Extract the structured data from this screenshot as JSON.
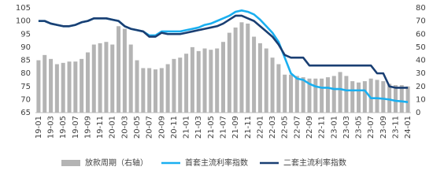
{
  "chart_data": {
    "type": "combo",
    "categories": [
      "19-01",
      null,
      "19-03",
      null,
      "19-05",
      null,
      "19-07",
      null,
      "19-09",
      null,
      "19-11",
      null,
      "20-01",
      null,
      "20-03",
      null,
      "20-05",
      null,
      "20-07",
      null,
      "20-09",
      null,
      "20-11",
      null,
      "21-01",
      null,
      "21-03",
      null,
      "21-05",
      null,
      "21-07",
      null,
      "21-09",
      null,
      "21-11",
      null,
      "22-01",
      null,
      "22-03",
      null,
      "22-05",
      null,
      "22-07",
      null,
      "22-09",
      null,
      "22-11",
      null,
      "23-01",
      null,
      "23-03",
      null,
      "23-05",
      null,
      "23-07",
      null,
      "23-09",
      null,
      "23-11",
      null,
      "24-01"
    ],
    "series": [
      {
        "name": "放款周期（右轴）",
        "type": "bar",
        "axis": "y2",
        "color": "#b4b4b4",
        "values": [
          40,
          44,
          41,
          37,
          38,
          39,
          39,
          41,
          46,
          52,
          53,
          54,
          52,
          66,
          64,
          52,
          40,
          34,
          34,
          33,
          34,
          37,
          41,
          42,
          45,
          50,
          47,
          49,
          48,
          49,
          54,
          61,
          65,
          69,
          68,
          58,
          53,
          49,
          42,
          37,
          29,
          29,
          28,
          27,
          26,
          26,
          26,
          27,
          28,
          31,
          28,
          24,
          23,
          24,
          26,
          25,
          24,
          22,
          21,
          21,
          20
        ]
      },
      {
        "name": "首套主流利率指数",
        "type": "line",
        "color": "#1aaff0",
        "values": [
          100,
          100,
          99,
          98.5,
          98,
          98,
          98.5,
          99.5,
          100,
          101,
          101,
          101,
          100.5,
          100,
          98,
          97,
          96.5,
          96,
          94.5,
          94.5,
          96,
          96,
          96,
          96,
          96.5,
          97,
          97.5,
          98.5,
          99,
          100,
          101,
          102,
          103.5,
          104,
          103.5,
          102.5,
          100.5,
          98,
          95.5,
          92,
          86,
          80,
          78,
          77.5,
          76,
          75,
          74.5,
          74.5,
          74,
          74,
          73.5,
          73.5,
          73.5,
          73.5,
          70.5,
          70.5,
          70.3,
          70,
          69.5,
          69.3,
          69
        ]
      },
      {
        "name": "二套主流利率指数",
        "type": "line",
        "color": "#1a3f73",
        "values": [
          100,
          100,
          99,
          98.5,
          98,
          98,
          98.5,
          99.5,
          100,
          101,
          101,
          101,
          100.5,
          100,
          98,
          97,
          96.5,
          96,
          94,
          94,
          95.5,
          95,
          95,
          95,
          95.5,
          96,
          96.5,
          97,
          97.5,
          98,
          99,
          100.5,
          102,
          102,
          101,
          100,
          98,
          96,
          94,
          91,
          87,
          86,
          86,
          86,
          83,
          83,
          83,
          83,
          83,
          83,
          83,
          83,
          83,
          83,
          83,
          80,
          80,
          75,
          74.5,
          74.5,
          74.5
        ]
      }
    ],
    "ylim": [
      65,
      105
    ],
    "yticks": [
      65,
      70,
      75,
      80,
      85,
      90,
      95,
      100,
      105
    ],
    "y2lim": [
      0,
      80
    ],
    "y2ticks": [
      0,
      10,
      20,
      30,
      40,
      50,
      60,
      70,
      80
    ],
    "legend": "bottom"
  }
}
